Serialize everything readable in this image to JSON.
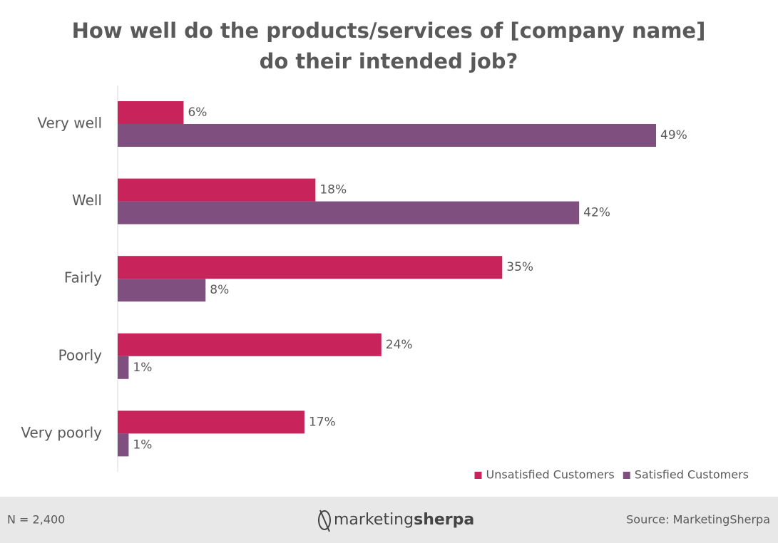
{
  "chart_data": {
    "type": "hbar",
    "title": [
      "How well do the products/services of [company name]",
      "do their intended job?"
    ],
    "categories": [
      "Very well",
      "Well",
      "Fairly",
      "Poorly",
      "Very poorly"
    ],
    "series": [
      {
        "name": "Unsatisfied Customers",
        "color": "#c8235a",
        "values": [
          6,
          18,
          35,
          24,
          17
        ],
        "value_labels": [
          "6%",
          "18%",
          "35%",
          "24%",
          "17%"
        ]
      },
      {
        "name": "Satisfied Customers",
        "color": "#7f4f7f",
        "values": [
          49,
          42,
          8,
          1,
          1
        ],
        "value_labels": [
          "49%",
          "42%",
          "8%",
          "1%",
          "1%"
        ]
      }
    ],
    "legend": "bottom-right"
  },
  "footer": {
    "note": "N = 2,400",
    "logo": [
      "marketing",
      "sherpa"
    ],
    "source": "Source: MarketingSherpa"
  }
}
